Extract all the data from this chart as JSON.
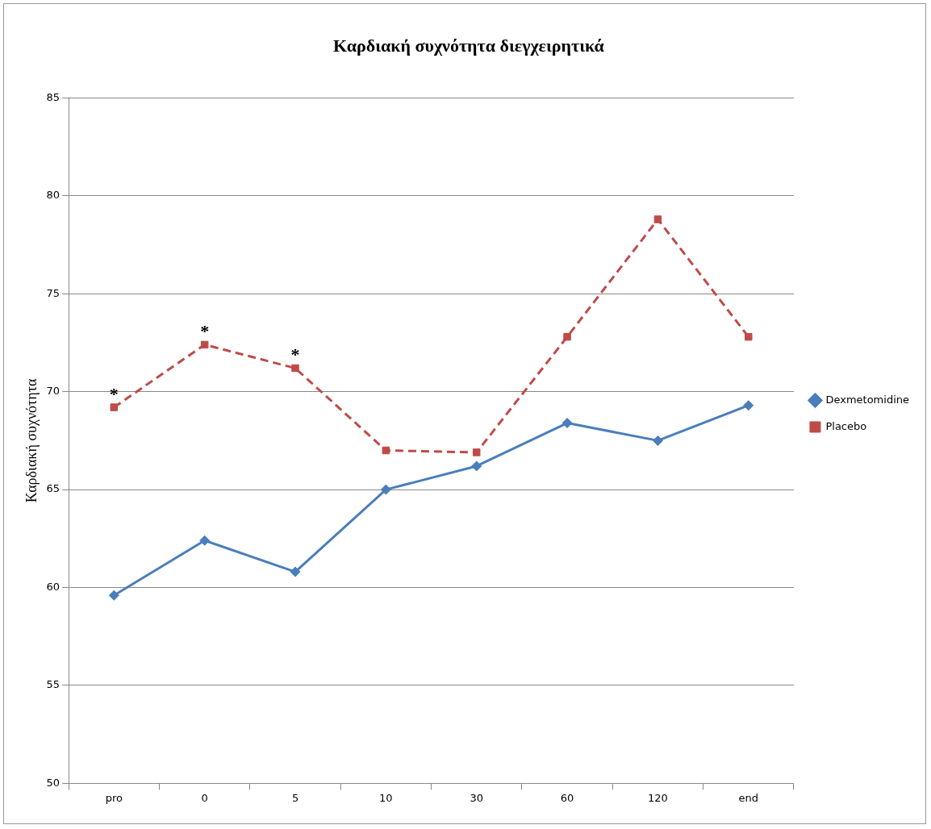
{
  "chart_data": {
    "type": "line",
    "title": "Καρδιακή συχνότητα διεγχειρητικά",
    "ylabel": "Καρδιακή συχνότητα",
    "categories": [
      "pro",
      "0",
      "5",
      "10",
      "30",
      "60",
      "120",
      "end"
    ],
    "series": [
      {
        "name": "Dexmetomidine",
        "color": "#4a7ebb",
        "marker": "diamond",
        "line_style": "solid",
        "values": [
          59.6,
          62.4,
          60.8,
          65.0,
          66.2,
          68.4,
          67.5,
          69.3
        ]
      },
      {
        "name": "Placebo",
        "color": "#be4b48",
        "marker": "square",
        "line_style": "dashed",
        "values": [
          69.2,
          72.4,
          71.2,
          67.0,
          66.9,
          72.8,
          78.8,
          72.8
        ]
      }
    ],
    "ylim": [
      50,
      85
    ],
    "yticks": [
      50,
      55,
      60,
      65,
      70,
      75,
      80,
      85
    ],
    "grid": "y",
    "legend": "right",
    "annotations": [
      {
        "text": "*",
        "x": "pro",
        "y": 69.2
      },
      {
        "text": "*",
        "x": "0",
        "y": 72.4
      },
      {
        "text": "*",
        "x": "5",
        "y": 71.2
      }
    ]
  }
}
